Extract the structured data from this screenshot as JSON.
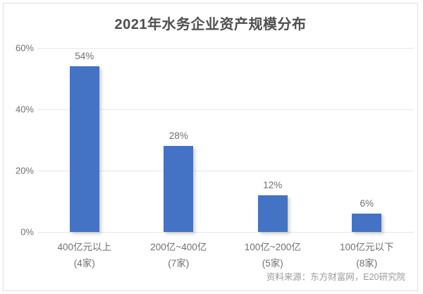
{
  "title": "2021年水务企业资产规模分布",
  "footer": {
    "source": "资料来源：东方财富网，E20研究院"
  },
  "colors": {
    "bar": "#4472c4",
    "gridline": "#e7e7e7",
    "border": "#e0e0e0",
    "title_text": "#4f4f4f",
    "axis_text": "#707070",
    "footer_text": "#9a9a9a"
  },
  "chart_data": {
    "type": "bar",
    "title": "2021年水务企业资产规模分布",
    "categories": [
      {
        "label": "400亿元以上",
        "sublabel": "(4家)"
      },
      {
        "label": "200亿~400亿",
        "sublabel": "(7家)"
      },
      {
        "label": "100亿~200亿",
        "sublabel": "(5家)"
      },
      {
        "label": "100亿元以下",
        "sublabel": "(8家)"
      }
    ],
    "values": [
      54,
      28,
      12,
      6
    ],
    "value_labels": [
      "54%",
      "28%",
      "12%",
      "6%"
    ],
    "xlabel": "",
    "ylabel": "",
    "ylim": [
      0,
      60
    ],
    "yticks": [
      0,
      20,
      40,
      60
    ],
    "ytick_labels": [
      "0%",
      "20%",
      "40%",
      "60%"
    ],
    "grid": true,
    "legend": false,
    "source": "资料来源：东方财富网，E20研究院"
  }
}
